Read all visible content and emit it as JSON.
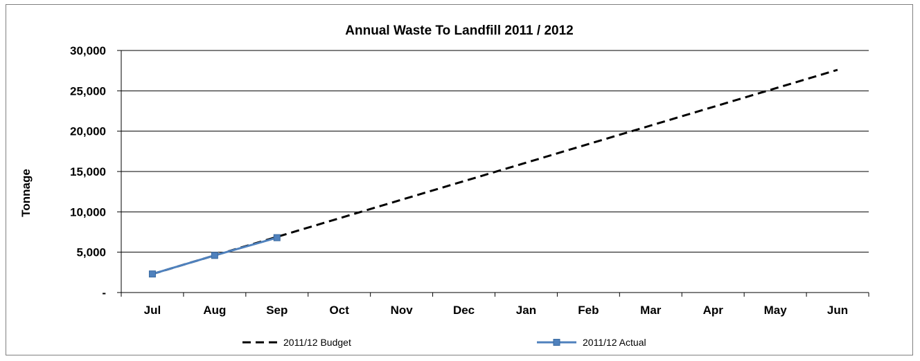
{
  "chart_data": {
    "type": "line",
    "title": "Annual Waste To Landfill 2011 / 2012",
    "xlabel": "",
    "ylabel": "Tonnage",
    "categories": [
      "Jul",
      "Aug",
      "Sep",
      "Oct",
      "Nov",
      "Dec",
      "Jan",
      "Feb",
      "Mar",
      "Apr",
      "May",
      "Jun"
    ],
    "ylim": [
      0,
      30000
    ],
    "yticks": [
      0,
      5000,
      10000,
      15000,
      20000,
      25000,
      30000
    ],
    "ytick_labels": [
      "-",
      "5,000",
      "10,000",
      "15,000",
      "20,000",
      "25,000",
      "30,000"
    ],
    "grid": "horizontal",
    "legend_position": "bottom",
    "series": [
      {
        "name": "2011/12 Budget",
        "style": "dashed",
        "color": "#000000",
        "values": [
          2300,
          4600,
          6900,
          9200,
          11500,
          13800,
          16100,
          18400,
          20700,
          23000,
          25300,
          27600
        ]
      },
      {
        "name": "2011/12 Actual",
        "style": "solid-square-markers",
        "color": "#4f81bd",
        "values": [
          2300,
          4600,
          6800,
          null,
          null,
          null,
          null,
          null,
          null,
          null,
          null,
          null
        ]
      }
    ]
  }
}
